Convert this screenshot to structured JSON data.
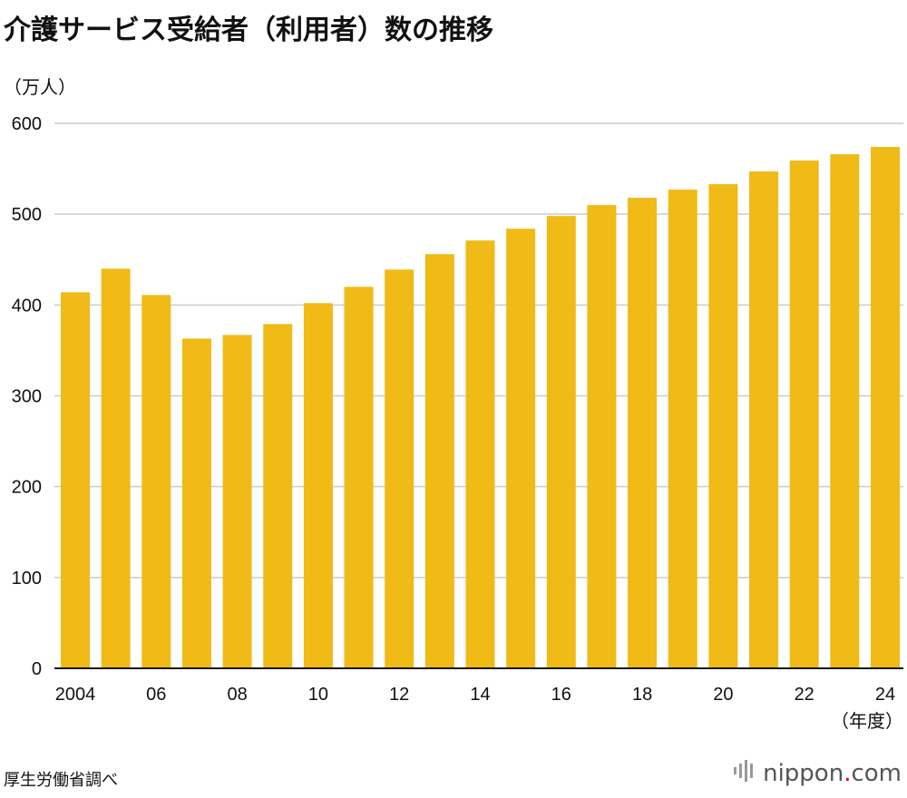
{
  "chart_data": {
    "type": "bar",
    "title": "介護サービス受給者（利用者）数の推移",
    "ylabel": "（万人）",
    "xlabel": "（年度）",
    "categories": [
      "2004",
      "2005",
      "2006",
      "2007",
      "2008",
      "2009",
      "2010",
      "2011",
      "2012",
      "2013",
      "2014",
      "2015",
      "2016",
      "2017",
      "2018",
      "2019",
      "2020",
      "2021",
      "2022",
      "2023",
      "2024"
    ],
    "tick_labels": [
      "2004",
      "",
      "06",
      "",
      "08",
      "",
      "10",
      "",
      "12",
      "",
      "14",
      "",
      "16",
      "",
      "18",
      "",
      "20",
      "",
      "22",
      "",
      "24"
    ],
    "values": [
      414,
      440,
      411,
      363,
      367,
      379,
      402,
      420,
      439,
      456,
      471,
      484,
      498,
      510,
      518,
      527,
      533,
      547,
      559,
      566,
      574
    ],
    "ylim": [
      0,
      600
    ],
    "yticks": [
      0,
      100,
      200,
      300,
      400,
      500,
      600
    ],
    "grid": true,
    "bar_color": "#f0ba17",
    "grid_color": "#cccccc"
  },
  "source": "厚生労働省調べ",
  "logo": {
    "text": "nippon",
    "dot": ".",
    "suffix": "com"
  }
}
